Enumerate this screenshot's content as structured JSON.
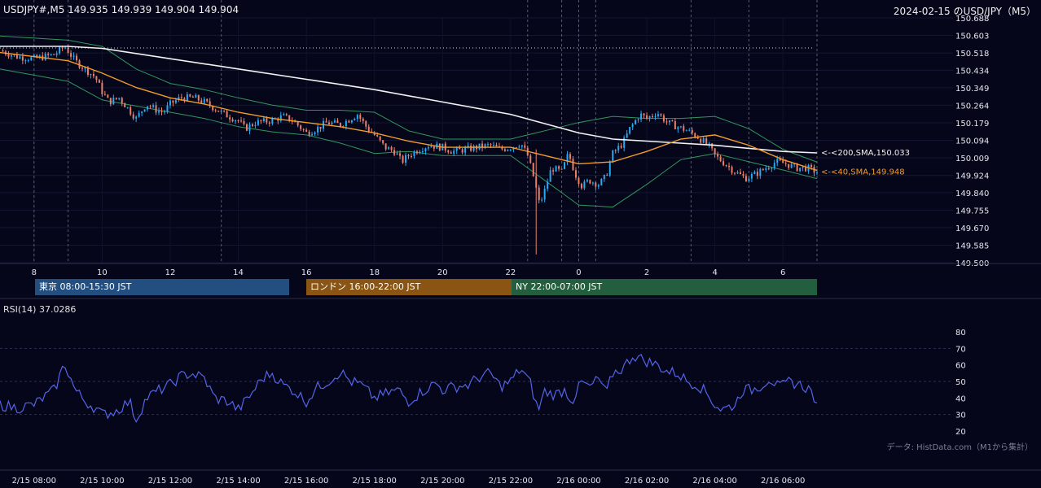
{
  "header": {
    "symbol_line": "USDJPY#,M5 149.935 149.939 149.904 149.904",
    "title": "2024-02-15 のUSD/JPY（M5）"
  },
  "sessions": [
    {
      "label": "東京 08:00-15:30 JST",
      "color": "#234f80"
    },
    {
      "label": "ロンドン 16:00-22:00 JST",
      "color": "#8a5412"
    },
    {
      "label": "NY 22:00-07:00 JST",
      "color": "#235f3e"
    }
  ],
  "rsi": {
    "label": "RSI(14) 37.0286"
  },
  "source_note": "データ: HistData.com（M1から集計）",
  "colors": {
    "background": "#05061a",
    "bull": "#2aa8f0",
    "bear": "#e8806c",
    "sma200": "#f2f2f2",
    "sma40": "#f39c2a",
    "bollinger": "#3dba6e",
    "rsi": "#5564e8"
  },
  "chart_data": [
    {
      "type": "candlestick",
      "title": "USDJPY#,M5",
      "y_ticks": [
        "150.688",
        "150.603",
        "150.518",
        "150.434",
        "150.349",
        "150.264",
        "150.179",
        "150.094",
        "150.009",
        "149.924",
        "149.840",
        "149.755",
        "149.670",
        "149.585",
        "149.500"
      ],
      "ylim": [
        149.5,
        150.688
      ],
      "x_hour_ticks": [
        "8",
        "10",
        "12",
        "14",
        "16",
        "18",
        "20",
        "22",
        "0",
        "2",
        "4",
        "6"
      ],
      "x_range_hours": [
        7.0,
        31.0
      ],
      "dotted_level": 150.542,
      "price_path": [
        [
          7.0,
          150.53
        ],
        [
          7.5,
          150.5
        ],
        [
          8.0,
          150.49
        ],
        [
          8.6,
          150.51
        ],
        [
          8.9,
          150.55
        ],
        [
          9.2,
          150.48
        ],
        [
          9.5,
          150.44
        ],
        [
          9.8,
          150.4
        ],
        [
          10.0,
          150.33
        ],
        [
          10.2,
          150.28
        ],
        [
          10.5,
          150.3
        ],
        [
          10.8,
          150.24
        ],
        [
          11.0,
          150.2
        ],
        [
          11.3,
          150.27
        ],
        [
          11.6,
          150.24
        ],
        [
          11.8,
          150.23
        ],
        [
          12.0,
          150.27
        ],
        [
          12.3,
          150.3
        ],
        [
          12.7,
          150.3
        ],
        [
          13.0,
          150.28
        ],
        [
          13.3,
          150.25
        ],
        [
          13.6,
          150.22
        ],
        [
          14.0,
          150.19
        ],
        [
          14.2,
          150.15
        ],
        [
          14.5,
          150.18
        ],
        [
          15.0,
          150.19
        ],
        [
          15.3,
          150.21
        ],
        [
          15.6,
          150.19
        ],
        [
          16.0,
          150.13
        ],
        [
          16.3,
          150.15
        ],
        [
          16.6,
          150.18
        ],
        [
          17.0,
          150.17
        ],
        [
          17.5,
          150.22
        ],
        [
          17.8,
          150.15
        ],
        [
          18.0,
          150.12
        ],
        [
          18.3,
          150.06
        ],
        [
          18.6,
          150.04
        ],
        [
          18.8,
          149.99
        ],
        [
          19.0,
          150.02
        ],
        [
          19.3,
          150.05
        ],
        [
          19.6,
          150.07
        ],
        [
          20.0,
          150.06
        ],
        [
          20.3,
          150.04
        ],
        [
          20.7,
          150.05
        ],
        [
          21.0,
          150.06
        ],
        [
          21.4,
          150.07
        ],
        [
          21.7,
          150.05
        ],
        [
          22.0,
          150.06
        ],
        [
          22.3,
          150.08
        ],
        [
          22.5,
          150.02
        ],
        [
          22.7,
          149.9
        ],
        [
          22.85,
          149.78
        ],
        [
          23.0,
          149.85
        ],
        [
          23.2,
          149.96
        ],
        [
          23.5,
          149.94
        ],
        [
          23.7,
          150.03
        ],
        [
          23.9,
          149.93
        ],
        [
          24.1,
          149.87
        ],
        [
          24.3,
          149.9
        ],
        [
          24.6,
          149.88
        ],
        [
          24.8,
          149.92
        ],
        [
          25.0,
          150.03
        ],
        [
          25.3,
          150.08
        ],
        [
          25.5,
          150.15
        ],
        [
          25.8,
          150.22
        ],
        [
          26.0,
          150.2
        ],
        [
          26.3,
          150.23
        ],
        [
          26.6,
          150.18
        ],
        [
          26.9,
          150.16
        ],
        [
          27.2,
          150.14
        ],
        [
          27.5,
          150.11
        ],
        [
          27.8,
          150.07
        ],
        [
          28.0,
          150.02
        ],
        [
          28.3,
          149.98
        ],
        [
          28.6,
          149.94
        ],
        [
          28.9,
          149.91
        ],
        [
          29.2,
          149.93
        ],
        [
          29.5,
          149.96
        ],
        [
          29.8,
          149.99
        ],
        [
          30.1,
          149.98
        ],
        [
          30.4,
          149.96
        ],
        [
          30.7,
          149.96
        ],
        [
          31.0,
          149.94
        ]
      ],
      "series": [
        {
          "name": "200,SMA",
          "last": "<-<200,SMA,150.033",
          "points": [
            [
              7.0,
              150.55
            ],
            [
              9.0,
              150.55
            ],
            [
              10.0,
              150.54
            ],
            [
              12.0,
              150.49
            ],
            [
              14.0,
              150.44
            ],
            [
              16.0,
              150.39
            ],
            [
              18.0,
              150.34
            ],
            [
              20.0,
              150.28
            ],
            [
              22.0,
              150.22
            ],
            [
              24.0,
              150.13
            ],
            [
              25.0,
              150.1
            ],
            [
              26.0,
              150.09
            ],
            [
              28.0,
              150.07
            ],
            [
              30.0,
              150.04
            ],
            [
              31.0,
              150.033
            ]
          ]
        },
        {
          "name": "40,SMA",
          "last": "<-<40,SMA,149.948",
          "points": [
            [
              7.0,
              150.52
            ],
            [
              8.0,
              150.5
            ],
            [
              9.0,
              150.48
            ],
            [
              10.0,
              150.42
            ],
            [
              11.0,
              150.35
            ],
            [
              12.0,
              150.3
            ],
            [
              13.0,
              150.27
            ],
            [
              14.0,
              150.23
            ],
            [
              15.0,
              150.2
            ],
            [
              16.0,
              150.18
            ],
            [
              17.0,
              150.16
            ],
            [
              18.0,
              150.13
            ],
            [
              19.0,
              150.09
            ],
            [
              20.0,
              150.06
            ],
            [
              21.0,
              150.06
            ],
            [
              22.0,
              150.06
            ],
            [
              23.0,
              150.02
            ],
            [
              24.0,
              149.98
            ],
            [
              25.0,
              149.99
            ],
            [
              26.0,
              150.04
            ],
            [
              27.0,
              150.1
            ],
            [
              28.0,
              150.12
            ],
            [
              29.0,
              150.07
            ],
            [
              30.0,
              150.0
            ],
            [
              31.0,
              149.948
            ]
          ]
        }
      ],
      "bollinger_halfwidth": [
        [
          7.0,
          0.08
        ],
        [
          9.0,
          0.1
        ],
        [
          10.0,
          0.13
        ],
        [
          11.0,
          0.09
        ],
        [
          12.0,
          0.07
        ],
        [
          14.0,
          0.07
        ],
        [
          16.0,
          0.06
        ],
        [
          18.0,
          0.1
        ],
        [
          19.0,
          0.05
        ],
        [
          20.0,
          0.04
        ],
        [
          21.0,
          0.04
        ],
        [
          22.0,
          0.04
        ],
        [
          23.0,
          0.12
        ],
        [
          24.0,
          0.2
        ],
        [
          25.0,
          0.22
        ],
        [
          26.0,
          0.16
        ],
        [
          27.0,
          0.1
        ],
        [
          28.0,
          0.09
        ],
        [
          29.0,
          0.08
        ],
        [
          30.0,
          0.05
        ],
        [
          31.0,
          0.04
        ]
      ]
    },
    {
      "type": "line",
      "title": "RSI(14) 37.0286",
      "series": [
        {
          "name": "RSI(14)",
          "last": 37.0286
        }
      ],
      "ylim": [
        20,
        80
      ],
      "y_ticks": [
        80,
        70,
        60,
        50,
        40,
        30,
        20
      ],
      "dashed_levels": [
        70,
        50,
        30
      ],
      "x_tick_labels": [
        "2/15 08:00",
        "2/15 10:00",
        "2/15 12:00",
        "2/15 14:00",
        "2/15 16:00",
        "2/15 18:00",
        "2/15 20:00",
        "2/15 22:00",
        "2/16 00:00",
        "2/16 02:00",
        "2/16 04:00",
        "2/16 06:00"
      ],
      "rsi_path": [
        [
          7.0,
          36
        ],
        [
          7.5,
          34
        ],
        [
          8.0,
          36
        ],
        [
          8.6,
          45
        ],
        [
          8.9,
          61
        ],
        [
          9.2,
          45
        ],
        [
          9.5,
          38
        ],
        [
          9.8,
          34
        ],
        [
          10.0,
          30
        ],
        [
          10.4,
          32
        ],
        [
          10.8,
          38
        ],
        [
          11.0,
          27
        ],
        [
          11.3,
          40
        ],
        [
          11.7,
          45
        ],
        [
          12.0,
          48
        ],
        [
          12.3,
          53
        ],
        [
          12.6,
          55
        ],
        [
          13.0,
          52
        ],
        [
          13.3,
          40
        ],
        [
          13.7,
          38
        ],
        [
          14.0,
          33
        ],
        [
          14.3,
          40
        ],
        [
          14.7,
          52
        ],
        [
          15.0,
          55
        ],
        [
          15.3,
          48
        ],
        [
          15.6,
          45
        ],
        [
          16.0,
          38
        ],
        [
          16.3,
          46
        ],
        [
          16.7,
          51
        ],
        [
          17.0,
          56
        ],
        [
          17.3,
          50
        ],
        [
          17.6,
          48
        ],
        [
          18.0,
          40
        ],
        [
          18.4,
          43
        ],
        [
          18.7,
          45
        ],
        [
          19.0,
          38
        ],
        [
          19.4,
          44
        ],
        [
          19.8,
          49
        ],
        [
          20.0,
          45
        ],
        [
          20.4,
          47
        ],
        [
          20.8,
          48
        ],
        [
          21.0,
          52
        ],
        [
          21.4,
          55
        ],
        [
          21.7,
          47
        ],
        [
          22.0,
          50
        ],
        [
          22.3,
          58
        ],
        [
          22.6,
          48
        ],
        [
          22.8,
          32
        ],
        [
          23.0,
          44
        ],
        [
          23.3,
          42
        ],
        [
          23.6,
          45
        ],
        [
          23.8,
          38
        ],
        [
          24.1,
          50
        ],
        [
          24.3,
          46
        ],
        [
          24.6,
          52
        ],
        [
          24.8,
          42
        ],
        [
          25.0,
          55
        ],
        [
          25.3,
          58
        ],
        [
          25.6,
          66
        ],
        [
          25.9,
          63
        ],
        [
          26.3,
          60
        ],
        [
          26.6,
          56
        ],
        [
          26.9,
          55
        ],
        [
          27.2,
          50
        ],
        [
          27.5,
          48
        ],
        [
          27.8,
          42
        ],
        [
          28.0,
          36
        ],
        [
          28.2,
          33
        ],
        [
          28.6,
          36
        ],
        [
          28.8,
          45
        ],
        [
          29.1,
          45
        ],
        [
          29.4,
          48
        ],
        [
          29.6,
          52
        ],
        [
          29.9,
          46
        ],
        [
          30.2,
          50
        ],
        [
          30.5,
          48
        ],
        [
          30.8,
          45
        ],
        [
          31.0,
          37
        ]
      ]
    }
  ]
}
